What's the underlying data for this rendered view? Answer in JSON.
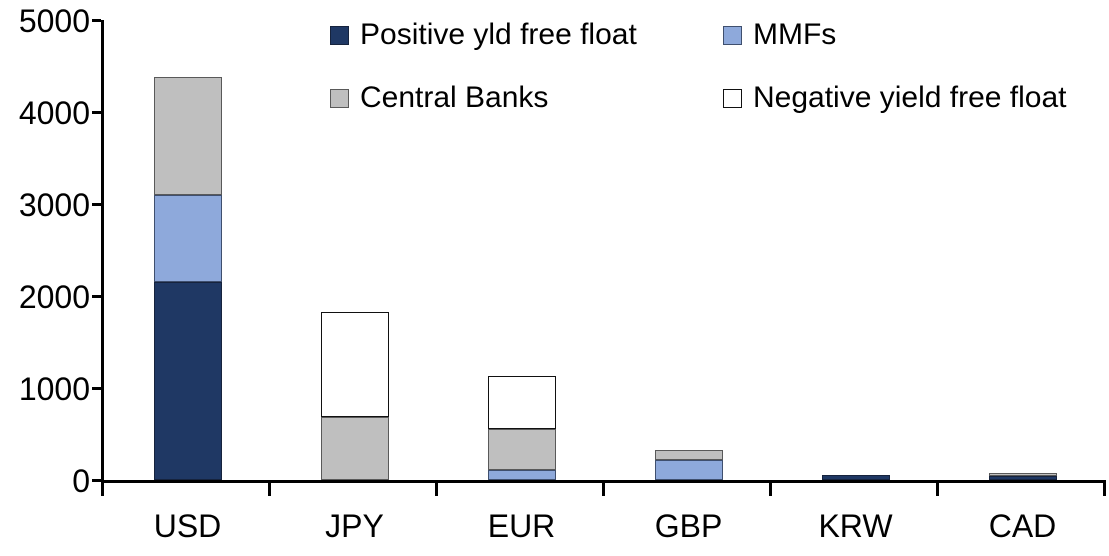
{
  "chart_data": {
    "type": "bar",
    "stacked": true,
    "title": "",
    "xlabel": "",
    "ylabel": "",
    "ylim": [
      0,
      5000
    ],
    "yticks": [
      0,
      1000,
      2000,
      3000,
      4000,
      5000
    ],
    "ytick_labels": [
      "0",
      "1000",
      "2000",
      "3000",
      "4000",
      "5000"
    ],
    "grid": false,
    "legend_position": "top",
    "categories": [
      "USD",
      "JPY",
      "EUR",
      "GBP",
      "KRW",
      "CAD"
    ],
    "series": [
      {
        "name": "Positive yld free float",
        "color": "#1F3864",
        "border": "#16233d",
        "values": [
          2150,
          0,
          0,
          0,
          50,
          45
        ]
      },
      {
        "name": "MMFs",
        "color": "#8EA9DB",
        "border": "#3f4f6e",
        "values": [
          950,
          0,
          110,
          220,
          0,
          0
        ]
      },
      {
        "name": "Central Banks",
        "color": "#BFBFBF",
        "border": "#595959",
        "values": [
          1280,
          690,
          440,
          105,
          0,
          35
        ]
      },
      {
        "name": "Negative yield free float",
        "color": "#FFFFFF",
        "border": "#111111",
        "values": [
          0,
          1140,
          580,
          0,
          0,
          0
        ]
      }
    ],
    "totals": [
      4380,
      1830,
      1130,
      325,
      50,
      80
    ]
  },
  "colors": {
    "axis": "#000000",
    "text": "#000000",
    "background": "#FFFFFF"
  }
}
